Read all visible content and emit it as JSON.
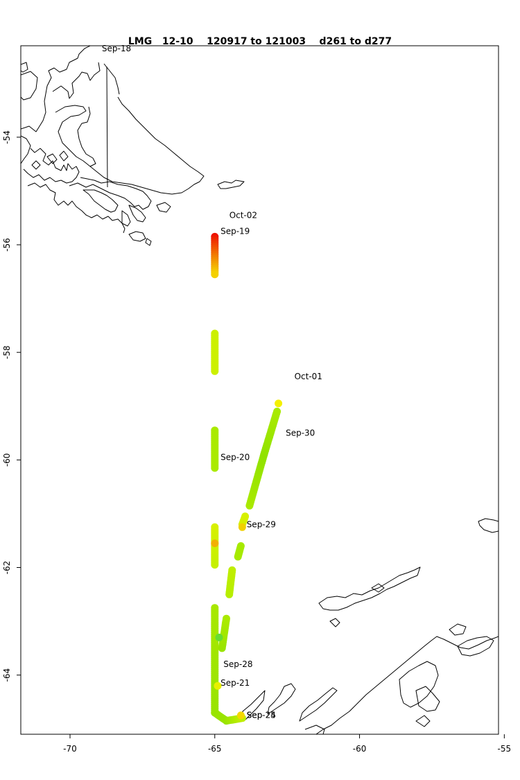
{
  "title": "LMG   12-10    120917 to 121003    d261 to d277",
  "x_axis": {
    "range": [
      -71.7,
      -55.2
    ],
    "ticks": [
      -70,
      -65,
      -60,
      -55
    ],
    "tick_labels": [
      "-70",
      "-65",
      "-60",
      "-55"
    ]
  },
  "y_axis": {
    "range": [
      -65.1,
      -52.3
    ],
    "ticks": [
      -54,
      -56,
      -58,
      -60,
      -62,
      -64
    ],
    "tick_labels": [
      "-54",
      "-56",
      "-58",
      "-60",
      "-62",
      "-64"
    ]
  },
  "date_labels": [
    {
      "text": "Sep-18",
      "lon": -68.9,
      "lat": -52.4
    },
    {
      "text": "Oct-02",
      "lon": -64.5,
      "lat": -55.5
    },
    {
      "text": "Sep-19",
      "lon": -64.8,
      "lat": -55.8
    },
    {
      "text": "Oct-01",
      "lon": -62.25,
      "lat": -58.5
    },
    {
      "text": "Sep-30",
      "lon": -62.55,
      "lat": -59.55
    },
    {
      "text": "Sep-20",
      "lon": -64.8,
      "lat": -60.0
    },
    {
      "text": "Sep-29",
      "lon": -63.9,
      "lat": -61.25
    },
    {
      "text": "Sep-28",
      "lon": -64.7,
      "lat": -63.85
    },
    {
      "text": "Sep-21",
      "lon": -64.8,
      "lat": -64.2
    },
    {
      "text": "Sep-24",
      "lon": -63.9,
      "lat": -64.8
    },
    {
      "text": "Sep-25",
      "lon": -63.9,
      "lat": -64.8
    }
  ],
  "track_colors": {
    "red": "#ee1100",
    "orange": "#f29a00",
    "yellow": "#f4f000",
    "yellow_green": "#bff000",
    "green": "#7ee200"
  },
  "track_segments": [
    {
      "from": [
        -65.0,
        -55.85
      ],
      "to": [
        -65.0,
        -56.55
      ],
      "color_from": "#ee1100",
      "color_to": "#f4d000"
    },
    {
      "from": [
        -65.0,
        -57.65
      ],
      "to": [
        -65.0,
        -58.35
      ],
      "color_from": "#ccf000",
      "color_to": "#ccf000"
    },
    {
      "from": [
        -65.0,
        -59.45
      ],
      "to": [
        -65.0,
        -60.15
      ],
      "color_from": "#aaea00",
      "color_to": "#aaea00"
    },
    {
      "from": [
        -65.0,
        -61.25
      ],
      "to": [
        -65.0,
        -61.95
      ],
      "color_from": "#d8f000",
      "color_to": "#c6f000"
    },
    {
      "from": [
        -65.0,
        -62.75
      ],
      "to": [
        -65.0,
        -64.7
      ],
      "color_from": "#a8e800",
      "color_to": "#99e400"
    },
    {
      "from": [
        -65.0,
        -64.7
      ],
      "to": [
        -64.6,
        -64.85
      ],
      "color_from": "#99e400",
      "color_to": "#99e400"
    },
    {
      "from": [
        -64.6,
        -64.85
      ],
      "to": [
        -64.05,
        -64.8
      ],
      "color_from": "#99e400",
      "color_to": "#bfee00"
    },
    {
      "from": [
        -64.75,
        -63.5
      ],
      "to": [
        -64.6,
        -62.95
      ],
      "color_from": "#99e400",
      "color_to": "#aaea00"
    },
    {
      "from": [
        -64.5,
        -62.5
      ],
      "to": [
        -64.4,
        -62.05
      ],
      "color_from": "#b6ee00",
      "color_to": "#bfee00"
    },
    {
      "from": [
        -64.2,
        -61.8
      ],
      "to": [
        -64.1,
        -61.6
      ],
      "color_from": "#a6ea00",
      "color_to": "#a6ea00"
    },
    {
      "from": [
        -64.05,
        -61.2
      ],
      "to": [
        -63.95,
        -61.05
      ],
      "color_from": "#d6f000",
      "color_to": "#d6f000"
    },
    {
      "from": [
        -63.8,
        -60.85
      ],
      "to": [
        -63.3,
        -59.9
      ],
      "color_from": "#aaea00",
      "color_to": "#90e200"
    },
    {
      "from": [
        -63.3,
        -59.9
      ],
      "to": [
        -62.85,
        -59.1
      ],
      "color_from": "#90e200",
      "color_to": "#a8ea00"
    }
  ],
  "track_points": [
    {
      "lon": -62.8,
      "lat": -58.95,
      "color": "#f4f000"
    },
    {
      "lon": -64.1,
      "lat": -64.75,
      "color": "#f4d800"
    },
    {
      "lon": -64.9,
      "lat": -64.2,
      "color": "#e8f000"
    },
    {
      "lon": -65.0,
      "lat": -61.55,
      "color": "#f2b000"
    },
    {
      "lon": -64.05,
      "lat": -61.25,
      "color": "#f0d000"
    },
    {
      "lon": -64.85,
      "lat": -63.3,
      "color": "#66dd33"
    }
  ]
}
